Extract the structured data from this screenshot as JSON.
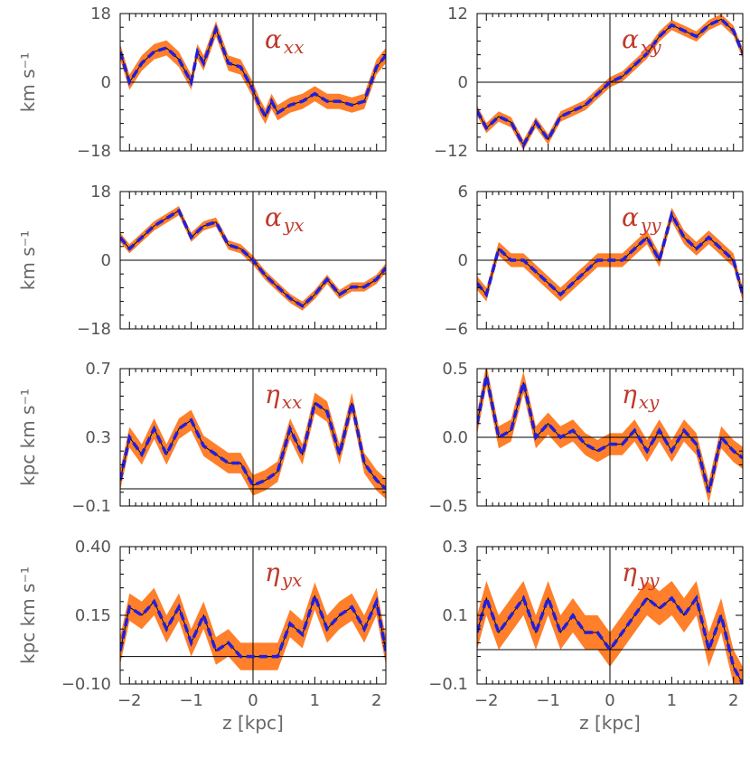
{
  "chart_data": [
    {
      "id": "alpha_xx",
      "type": "line",
      "label_main": "α",
      "label_sub": "xx",
      "ylim": [
        -18,
        18
      ],
      "ytick_values": [
        -18,
        0,
        18
      ],
      "ytick_labels": [
        "−18",
        "0",
        "18"
      ],
      "ylabel": "km s⁻¹",
      "xlim": [
        -2.15,
        2.15
      ],
      "xticks": [
        -2,
        -1,
        0,
        1,
        2
      ],
      "xlabel": "",
      "zero_line": 0,
      "x": [
        -2.15,
        -2.0,
        -1.8,
        -1.6,
        -1.4,
        -1.2,
        -1.0,
        -0.9,
        -0.8,
        -0.6,
        -0.4,
        -0.2,
        0.0,
        0.1,
        0.2,
        0.3,
        0.4,
        0.6,
        0.8,
        1.0,
        1.2,
        1.4,
        1.6,
        1.8,
        2.0,
        2.15
      ],
      "series": [
        {
          "values": [
            8,
            0,
            5,
            8,
            9,
            6,
            0,
            8,
            5,
            14,
            5,
            4,
            -2,
            -6,
            -9,
            -5,
            -8,
            -6,
            -5,
            -3,
            -5,
            -5,
            -6,
            -5,
            4,
            7
          ]
        }
      ],
      "band_halfwidth": 2.0
    },
    {
      "id": "alpha_xy",
      "type": "line",
      "label_main": "α",
      "label_sub": "xy",
      "ylim": [
        -12,
        12
      ],
      "ytick_values": [
        -12,
        0,
        12
      ],
      "ytick_labels": [
        "−12",
        "0",
        "12"
      ],
      "ylabel": "",
      "xlim": [
        -2.15,
        2.15
      ],
      "xticks": [
        -2,
        -1,
        0,
        1,
        2
      ],
      "xlabel": "",
      "zero_line": 0,
      "x": [
        -2.15,
        -2.0,
        -1.8,
        -1.6,
        -1.4,
        -1.2,
        -1.0,
        -0.8,
        -0.6,
        -0.4,
        -0.2,
        0.0,
        0.2,
        0.4,
        0.6,
        0.8,
        1.0,
        1.2,
        1.4,
        1.6,
        1.8,
        2.0,
        2.15
      ],
      "series": [
        {
          "values": [
            -5,
            -8,
            -6,
            -7,
            -11,
            -7,
            -10,
            -6,
            -5,
            -4,
            -2,
            0,
            1,
            3,
            5,
            8,
            10,
            9,
            8,
            10,
            11,
            9,
            5
          ]
        }
      ],
      "band_halfwidth": 0.9
    },
    {
      "id": "alpha_yx",
      "type": "line",
      "label_main": "α",
      "label_sub": "yx",
      "ylim": [
        -18,
        18
      ],
      "ytick_values": [
        -18,
        0,
        18
      ],
      "ytick_labels": [
        "−18",
        "0",
        "18"
      ],
      "ylabel": "km s⁻¹",
      "xlim": [
        -2.15,
        2.15
      ],
      "xticks": [
        -2,
        -1,
        0,
        1,
        2
      ],
      "xlabel": "",
      "zero_line": 0,
      "x": [
        -2.15,
        -2.0,
        -1.8,
        -1.6,
        -1.4,
        -1.2,
        -1.0,
        -0.8,
        -0.6,
        -0.4,
        -0.2,
        0.0,
        0.2,
        0.4,
        0.6,
        0.8,
        1.0,
        1.2,
        1.4,
        1.6,
        1.8,
        2.0,
        2.15
      ],
      "series": [
        {
          "values": [
            6,
            3,
            6,
            9,
            11,
            13,
            6,
            9,
            10,
            4,
            3,
            0,
            -4,
            -7,
            -10,
            -12,
            -9,
            -5,
            -9,
            -7,
            -7,
            -5,
            -2
          ]
        }
      ],
      "band_halfwidth": 1.2
    },
    {
      "id": "alpha_yy",
      "type": "line",
      "label_main": "α",
      "label_sub": "yy",
      "ylim": [
        -6,
        6
      ],
      "ytick_values": [
        -6,
        0,
        6
      ],
      "ytick_labels": [
        "−6",
        "0",
        "6"
      ],
      "ylabel": "",
      "xlim": [
        -2.15,
        2.15
      ],
      "xticks": [
        -2,
        -1,
        0,
        1,
        2
      ],
      "xlabel": "",
      "zero_line": 0,
      "x": [
        -2.15,
        -2.0,
        -1.8,
        -1.6,
        -1.4,
        -1.2,
        -1.0,
        -0.8,
        -0.6,
        -0.4,
        -0.2,
        0.0,
        0.2,
        0.4,
        0.6,
        0.8,
        1.0,
        1.2,
        1.4,
        1.6,
        1.8,
        2.0,
        2.15
      ],
      "series": [
        {
          "values": [
            -2,
            -3,
            1,
            0,
            0,
            -1,
            -2,
            -3,
            -2,
            -1,
            0,
            0,
            0,
            1,
            2,
            0,
            4,
            2,
            1,
            2,
            1,
            0,
            -3
          ]
        }
      ],
      "band_halfwidth": 0.6
    },
    {
      "id": "eta_xx",
      "type": "line",
      "label_main": "η",
      "label_sub": "xx",
      "ylim": [
        -0.1,
        0.7
      ],
      "ytick_values": [
        -0.1,
        0.3,
        0.7
      ],
      "ytick_labels": [
        "−0.1",
        "0.3",
        "0.7"
      ],
      "ylabel": "kpc km s⁻¹",
      "xlim": [
        -2.15,
        2.15
      ],
      "xticks": [
        -2,
        -1,
        0,
        1,
        2
      ],
      "xlabel": "",
      "zero_line": 0,
      "x": [
        -2.15,
        -2.0,
        -1.8,
        -1.6,
        -1.4,
        -1.2,
        -1.0,
        -0.8,
        -0.6,
        -0.4,
        -0.2,
        0.0,
        0.2,
        0.4,
        0.6,
        0.8,
        1.0,
        1.2,
        1.4,
        1.6,
        1.8,
        2.0,
        2.15
      ],
      "series": [
        {
          "values": [
            0.05,
            0.3,
            0.2,
            0.35,
            0.2,
            0.35,
            0.4,
            0.25,
            0.2,
            0.15,
            0.15,
            0.02,
            0.05,
            0.1,
            0.35,
            0.2,
            0.5,
            0.45,
            0.2,
            0.5,
            0.15,
            0.05,
            0.0
          ]
        }
      ],
      "band_halfwidth": 0.06
    },
    {
      "id": "eta_xy",
      "type": "line",
      "label_main": "η",
      "label_sub": "xy",
      "ylim": [
        -0.5,
        0.5
      ],
      "ytick_values": [
        -0.5,
        0.0,
        0.5
      ],
      "ytick_labels": [
        "−0.5",
        "0.0",
        "0.5"
      ],
      "ylabel": "",
      "xlim": [
        -2.15,
        2.15
      ],
      "xticks": [
        -2,
        -1,
        0,
        1,
        2
      ],
      "xlabel": "",
      "zero_line": 0,
      "x": [
        -2.15,
        -2.0,
        -1.8,
        -1.6,
        -1.4,
        -1.2,
        -1.0,
        -0.8,
        -0.6,
        -0.4,
        -0.2,
        0.0,
        0.2,
        0.4,
        0.6,
        0.8,
        1.0,
        1.2,
        1.4,
        1.6,
        1.8,
        2.0,
        2.15
      ],
      "series": [
        {
          "values": [
            0.1,
            0.45,
            0.0,
            0.05,
            0.4,
            0.0,
            0.1,
            0.0,
            0.05,
            -0.05,
            -0.1,
            -0.05,
            -0.05,
            0.05,
            -0.1,
            0.05,
            -0.1,
            0.05,
            -0.05,
            -0.4,
            0.0,
            -0.1,
            -0.15
          ]
        }
      ],
      "band_halfwidth": 0.08
    },
    {
      "id": "eta_yx",
      "type": "line",
      "label_main": "η",
      "label_sub": "yx",
      "ylim": [
        -0.1,
        0.4
      ],
      "ytick_values": [
        -0.1,
        0.15,
        0.4
      ],
      "ytick_labels": [
        "−0.10",
        "0.15",
        "0.40"
      ],
      "ylabel": "kpc km s⁻¹",
      "xlim": [
        -2.15,
        2.15
      ],
      "xticks": [
        -2,
        -1,
        0,
        1,
        2
      ],
      "xlabel": "z  [kpc]",
      "zero_line": 0,
      "x": [
        -2.15,
        -2.0,
        -1.8,
        -1.6,
        -1.4,
        -1.2,
        -1.0,
        -0.8,
        -0.6,
        -0.4,
        -0.2,
        0.0,
        0.2,
        0.4,
        0.6,
        0.8,
        1.0,
        1.2,
        1.4,
        1.6,
        1.8,
        2.0,
        2.15
      ],
      "series": [
        {
          "values": [
            0.02,
            0.18,
            0.15,
            0.2,
            0.1,
            0.18,
            0.05,
            0.15,
            0.02,
            0.05,
            0.0,
            0.0,
            0.0,
            0.0,
            0.12,
            0.08,
            0.22,
            0.1,
            0.15,
            0.18,
            0.1,
            0.2,
            0.02
          ]
        }
      ],
      "band_halfwidth": 0.05
    },
    {
      "id": "eta_yy",
      "type": "line",
      "label_main": "η",
      "label_sub": "yy",
      "ylim": [
        -0.1,
        0.3
      ],
      "ytick_values": [
        -0.1,
        0.1,
        0.3
      ],
      "ytick_labels": [
        "−0.1",
        "0.1",
        "0.3"
      ],
      "ylabel": "",
      "xlim": [
        -2.15,
        2.15
      ],
      "xticks": [
        -2,
        -1,
        0,
        1,
        2
      ],
      "xlabel": "z  [kpc]",
      "zero_line": 0,
      "x": [
        -2.15,
        -2.0,
        -1.8,
        -1.6,
        -1.4,
        -1.2,
        -1.0,
        -0.8,
        -0.6,
        -0.4,
        -0.2,
        0.0,
        0.2,
        0.4,
        0.6,
        0.8,
        1.0,
        1.2,
        1.4,
        1.6,
        1.8,
        2.0,
        2.15
      ],
      "series": [
        {
          "values": [
            0.05,
            0.15,
            0.05,
            0.1,
            0.15,
            0.05,
            0.15,
            0.05,
            0.1,
            0.05,
            0.05,
            0.0,
            0.05,
            0.1,
            0.15,
            0.12,
            0.15,
            0.1,
            0.15,
            0.0,
            0.1,
            -0.05,
            -0.1
          ]
        }
      ],
      "band_halfwidth": 0.05
    }
  ]
}
